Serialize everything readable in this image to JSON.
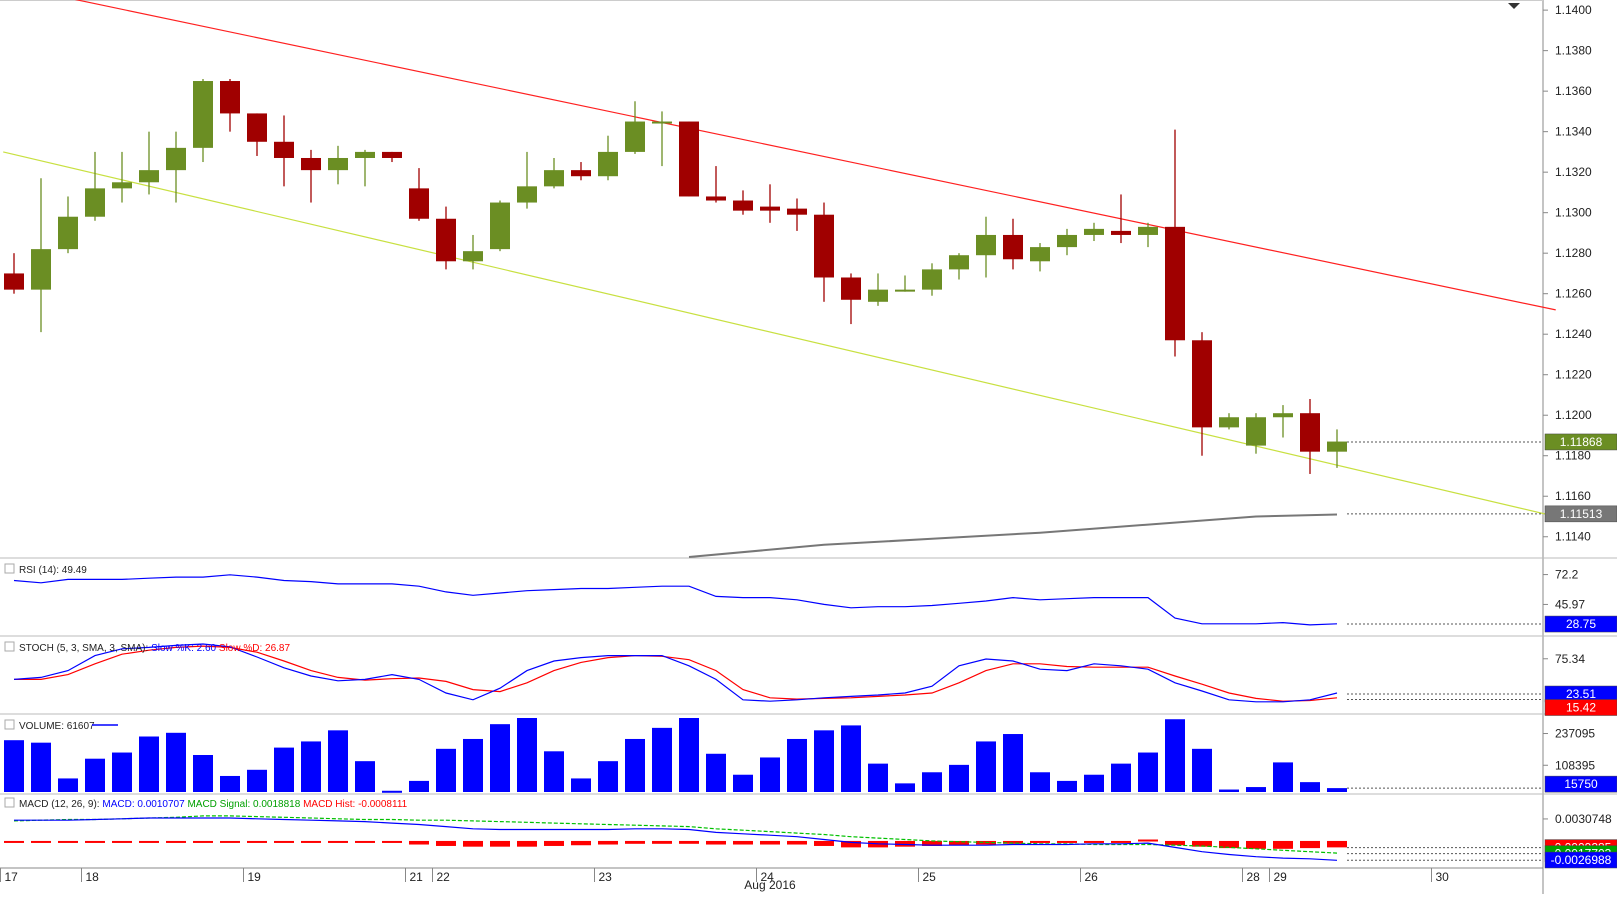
{
  "chart_data": {
    "type": "candlestick",
    "period_label": "Aug 2016",
    "price_axis": {
      "ylim": [
        1.113,
        1.1405
      ],
      "ticks": [
        "1.1400",
        "1.1380",
        "1.1360",
        "1.1340",
        "1.1320",
        "1.1300",
        "1.1280",
        "1.1260",
        "1.1240",
        "1.1220",
        "1.1200",
        "1.1180",
        "1.1160",
        "1.1140"
      ],
      "tick_values": [
        1.14,
        1.138,
        1.136,
        1.134,
        1.132,
        1.13,
        1.128,
        1.126,
        1.124,
        1.122,
        1.12,
        1.118,
        1.116,
        1.114
      ],
      "current_price_label": "1.11868",
      "current_price": 1.11868,
      "ma_label": "1.11513",
      "ma_value": 1.11513
    },
    "x_labels": [
      {
        "label": "17",
        "idx": -0.5
      },
      {
        "label": "18",
        "idx": 2.5
      },
      {
        "label": "19",
        "idx": 8.5
      },
      {
        "label": "21",
        "idx": 14.5
      },
      {
        "label": "22",
        "idx": 15.5
      },
      {
        "label": "23",
        "idx": 21.5
      },
      {
        "label": "24",
        "idx": 27.5
      },
      {
        "label": "25",
        "idx": 33.5
      },
      {
        "label": "26",
        "idx": 39.5
      },
      {
        "label": "28",
        "idx": 45.5
      },
      {
        "label": "29",
        "idx": 46.5
      },
      {
        "label": "30",
        "idx": 52.5
      }
    ],
    "candles": [
      {
        "o": 1.127,
        "h": 1.128,
        "l": 1.126,
        "c": 1.1262
      },
      {
        "o": 1.1262,
        "h": 1.1317,
        "l": 1.1241,
        "c": 1.1282
      },
      {
        "o": 1.1282,
        "h": 1.1308,
        "l": 1.128,
        "c": 1.1298
      },
      {
        "o": 1.1298,
        "h": 1.133,
        "l": 1.1296,
        "c": 1.1312
      },
      {
        "o": 1.1312,
        "h": 1.133,
        "l": 1.1305,
        "c": 1.1315
      },
      {
        "o": 1.1315,
        "h": 1.134,
        "l": 1.1309,
        "c": 1.1321
      },
      {
        "o": 1.1321,
        "h": 1.134,
        "l": 1.1305,
        "c": 1.1332
      },
      {
        "o": 1.1332,
        "h": 1.1366,
        "l": 1.1325,
        "c": 1.1365
      },
      {
        "o": 1.1365,
        "h": 1.1366,
        "l": 1.134,
        "c": 1.1349
      },
      {
        "o": 1.1349,
        "h": 1.1349,
        "l": 1.1328,
        "c": 1.1335
      },
      {
        "o": 1.1335,
        "h": 1.1348,
        "l": 1.1313,
        "c": 1.1327
      },
      {
        "o": 1.1327,
        "h": 1.1331,
        "l": 1.1305,
        "c": 1.1321
      },
      {
        "o": 1.1321,
        "h": 1.1333,
        "l": 1.1314,
        "c": 1.1327
      },
      {
        "o": 1.1327,
        "h": 1.1331,
        "l": 1.1313,
        "c": 1.133
      },
      {
        "o": 1.133,
        "h": 1.133,
        "l": 1.1325,
        "c": 1.1327
      },
      {
        "o": 1.1312,
        "h": 1.1322,
        "l": 1.1296,
        "c": 1.1297
      },
      {
        "o": 1.1297,
        "h": 1.1303,
        "l": 1.1272,
        "c": 1.1276
      },
      {
        "o": 1.1276,
        "h": 1.1289,
        "l": 1.1272,
        "c": 1.1281
      },
      {
        "o": 1.1282,
        "h": 1.1306,
        "l": 1.1281,
        "c": 1.1305
      },
      {
        "o": 1.1305,
        "h": 1.133,
        "l": 1.1302,
        "c": 1.1313
      },
      {
        "o": 1.1313,
        "h": 1.1327,
        "l": 1.1312,
        "c": 1.1321
      },
      {
        "o": 1.1321,
        "h": 1.1325,
        "l": 1.1316,
        "c": 1.1318
      },
      {
        "o": 1.1318,
        "h": 1.1338,
        "l": 1.1316,
        "c": 1.133
      },
      {
        "o": 1.133,
        "h": 1.1355,
        "l": 1.1329,
        "c": 1.1345
      },
      {
        "o": 1.1345,
        "h": 1.135,
        "l": 1.1323,
        "c": 1.1345
      },
      {
        "o": 1.1345,
        "h": 1.1345,
        "l": 1.1308,
        "c": 1.1308
      },
      {
        "o": 1.1308,
        "h": 1.1323,
        "l": 1.1305,
        "c": 1.1306
      },
      {
        "o": 1.1306,
        "h": 1.1311,
        "l": 1.1299,
        "c": 1.1301
      },
      {
        "o": 1.1303,
        "h": 1.1314,
        "l": 1.1295,
        "c": 1.1301
      },
      {
        "o": 1.1302,
        "h": 1.1307,
        "l": 1.1291,
        "c": 1.1299
      },
      {
        "o": 1.1299,
        "h": 1.1305,
        "l": 1.1256,
        "c": 1.1268
      },
      {
        "o": 1.1268,
        "h": 1.127,
        "l": 1.1245,
        "c": 1.1257
      },
      {
        "o": 1.1256,
        "h": 1.127,
        "l": 1.1254,
        "c": 1.1262
      },
      {
        "o": 1.1262,
        "h": 1.1269,
        "l": 1.1261,
        "c": 1.1262
      },
      {
        "o": 1.1262,
        "h": 1.1275,
        "l": 1.1259,
        "c": 1.1272
      },
      {
        "o": 1.1272,
        "h": 1.128,
        "l": 1.1267,
        "c": 1.1279
      },
      {
        "o": 1.1279,
        "h": 1.1298,
        "l": 1.1268,
        "c": 1.1289
      },
      {
        "o": 1.1289,
        "h": 1.1297,
        "l": 1.1272,
        "c": 1.1277
      },
      {
        "o": 1.1276,
        "h": 1.1285,
        "l": 1.1271,
        "c": 1.1283
      },
      {
        "o": 1.1283,
        "h": 1.1292,
        "l": 1.1279,
        "c": 1.1289
      },
      {
        "o": 1.1289,
        "h": 1.1295,
        "l": 1.1286,
        "c": 1.1292
      },
      {
        "o": 1.1291,
        "h": 1.1309,
        "l": 1.1285,
        "c": 1.1289
      },
      {
        "o": 1.1289,
        "h": 1.1295,
        "l": 1.1283,
        "c": 1.1293
      },
      {
        "o": 1.1293,
        "h": 1.1341,
        "l": 1.1229,
        "c": 1.1237
      },
      {
        "o": 1.1237,
        "h": 1.1241,
        "l": 1.118,
        "c": 1.1194
      },
      {
        "o": 1.1194,
        "h": 1.1201,
        "l": 1.1193,
        "c": 1.1199
      },
      {
        "o": 1.1185,
        "h": 1.1201,
        "l": 1.1181,
        "c": 1.1199
      },
      {
        "o": 1.1199,
        "h": 1.1205,
        "l": 1.1189,
        "c": 1.1201
      },
      {
        "o": 1.1201,
        "h": 1.1208,
        "l": 1.1171,
        "c": 1.1182
      },
      {
        "o": 1.1182,
        "h": 1.1193,
        "l": 1.1174,
        "c": 1.1187
      }
    ],
    "resistance_line": {
      "from": {
        "idx": 2,
        "price": 1.1406
      },
      "to": {
        "idx": 57.1,
        "price": 1.1252
      }
    },
    "support_line": {
      "from": {
        "idx": -0.4,
        "price": 1.133
      },
      "to": {
        "idx": 57.1,
        "price": 1.115
      }
    },
    "moving_average": [
      {
        "idx": 25,
        "v": 1.113
      },
      {
        "idx": 30,
        "v": 1.1136
      },
      {
        "idx": 34,
        "v": 1.1139
      },
      {
        "idx": 38,
        "v": 1.1142
      },
      {
        "idx": 42,
        "v": 1.1146
      },
      {
        "idx": 46,
        "v": 1.115
      },
      {
        "idx": 49,
        "v": 1.1151
      }
    ],
    "rsi": {
      "title": "RSI (14): 49.49",
      "ylim": [
        20,
        85
      ],
      "ticks": [
        "72.2",
        "45.97"
      ],
      "tick_values": [
        72.2,
        45.97
      ],
      "current_label": "28.75",
      "current": 28.75,
      "values": [
        67,
        65,
        68,
        68,
        68,
        69,
        70,
        70,
        72,
        70,
        67,
        66,
        64,
        64,
        64,
        62,
        57,
        54,
        56,
        58,
        59,
        60,
        60,
        61,
        62,
        62,
        53,
        52,
        52,
        50,
        46,
        43,
        44,
        44,
        45,
        47,
        49,
        52,
        50,
        51,
        52,
        52,
        52,
        34,
        29,
        29,
        29,
        30,
        28,
        29
      ]
    },
    "stoch": {
      "title": "STOCH (5, 3, SMA, 3, SMA):",
      "k_label": "Slow %K: 2.60",
      "d_label": "Slow %D: 26.87",
      "ylim": [
        0,
        100
      ],
      "ticks": [
        "75.34"
      ],
      "tick_values": [
        75.34
      ],
      "current_labels": [
        "23.51",
        "15.42"
      ],
      "current_values": [
        23.51,
        15.42
      ],
      "k_values": [
        45,
        48,
        58,
        80,
        90,
        92,
        95,
        97,
        93,
        78,
        62,
        50,
        43,
        45,
        52,
        45,
        25,
        15,
        32,
        58,
        72,
        77,
        80,
        80,
        80,
        65,
        45,
        15,
        13,
        15,
        18,
        20,
        22,
        25,
        35,
        65,
        75,
        72,
        60,
        58,
        68,
        65,
        60,
        40,
        28,
        15,
        12,
        12,
        15,
        25
      ],
      "d_values": [
        45,
        45,
        52,
        68,
        82,
        88,
        92,
        94,
        92,
        85,
        72,
        58,
        48,
        44,
        46,
        47,
        42,
        30,
        27,
        40,
        58,
        70,
        77,
        80,
        79,
        74,
        58,
        30,
        18,
        16,
        17,
        18,
        20,
        22,
        25,
        40,
        58,
        68,
        68,
        64,
        63,
        63,
        63,
        50,
        38,
        25,
        17,
        13,
        14,
        18
      ]
    },
    "volume": {
      "title": "VOLUME: 61607",
      "ylim": [
        0,
        300000
      ],
      "ticks": [
        "237095",
        "108395"
      ],
      "tick_values": [
        237095,
        108395
      ],
      "current_label": "15750",
      "current": 15750,
      "values": [
        210000,
        200000,
        55000,
        135000,
        160000,
        225000,
        240000,
        150000,
        65000,
        90000,
        180000,
        205000,
        250000,
        125000,
        5000,
        45000,
        175000,
        215000,
        275000,
        300000,
        165000,
        55000,
        125000,
        215000,
        260000,
        300000,
        155000,
        70000,
        140000,
        215000,
        250000,
        270000,
        115000,
        35000,
        80000,
        110000,
        205000,
        235000,
        80000,
        45000,
        70000,
        115000,
        160000,
        295000,
        175000,
        10000,
        20000,
        120000,
        40000,
        15750
      ]
    },
    "macd": {
      "title": "MACD (12, 26, 9):",
      "macd_label": "MACD: 0.0010707",
      "signal_label": "MACD Signal: 0.0018818",
      "hist_label": "MACD Hist: -0.0008111",
      "ylim": [
        -0.0035,
        0.006
      ],
      "ticks": [
        "0.0030748"
      ],
      "tick_values": [
        0.0030748
      ],
      "current_labels": [
        "-0.0009285",
        "-0.0017703",
        "-0.0026988"
      ],
      "current_values": [
        -0.0009285,
        -0.0017703,
        -0.0026988
      ],
      "macd_values": [
        0.0029,
        0.0029,
        0.0029,
        0.003,
        0.0031,
        0.0032,
        0.0032,
        0.0032,
        0.0032,
        0.0031,
        0.003,
        0.0029,
        0.0028,
        0.0027,
        0.0025,
        0.0023,
        0.002,
        0.0017,
        0.0016,
        0.0016,
        0.0016,
        0.0016,
        0.0016,
        0.0017,
        0.0017,
        0.0016,
        0.0012,
        0.001,
        0.0008,
        0.0006,
        0.0002,
        -0.0002,
        -0.0004,
        -0.0005,
        -0.0006,
        -0.0006,
        -0.0006,
        -0.0005,
        -0.0005,
        -0.0005,
        -0.0004,
        -0.0004,
        -0.0003,
        -0.0009,
        -0.0015,
        -0.0019,
        -0.0022,
        -0.0024,
        -0.0025,
        -0.0027
      ],
      "signal_values": [
        0.0028,
        0.0029,
        0.003,
        0.003,
        0.0031,
        0.0032,
        0.0033,
        0.0035,
        0.0035,
        0.0034,
        0.0033,
        0.0032,
        0.0031,
        0.003,
        0.003,
        0.0029,
        0.0029,
        0.0028,
        0.0027,
        0.0026,
        0.0025,
        0.0024,
        0.0023,
        0.0022,
        0.0021,
        0.002,
        0.0017,
        0.0015,
        0.0013,
        0.0011,
        0.0009,
        0.0006,
        0.0004,
        0.0002,
        0.0,
        -0.0001,
        -0.0002,
        -0.0003,
        -0.0004,
        -0.0004,
        -0.0005,
        -0.0005,
        -0.0005,
        -0.0006,
        -0.0007,
        -0.0009,
        -0.0011,
        -0.0013,
        -0.0015,
        -0.0017
      ],
      "hist_values": [
        -0.0001,
        -0.0001,
        -0.0001,
        -0.0001,
        -0.0001,
        -0.0001,
        -0.0001,
        -0.0002,
        -0.0001,
        -0.0001,
        -0.0001,
        -0.0001,
        -0.0001,
        -0.0001,
        -0.0001,
        -0.0005,
        -0.0007,
        -0.0008,
        -0.0008,
        -0.0008,
        -0.0007,
        -0.0006,
        -0.0005,
        -0.0004,
        -0.0004,
        -0.0004,
        -0.0005,
        -0.0005,
        -0.0005,
        -0.0005,
        -0.0007,
        -0.0009,
        -0.0009,
        -0.0008,
        -0.0007,
        -0.0006,
        -0.0005,
        -0.0004,
        -0.0002,
        -0.0002,
        -0.0001,
        -0.0001,
        0.0002,
        -0.0006,
        -0.0008,
        -0.001,
        -0.0011,
        -0.0011,
        -0.001,
        -0.0009
      ]
    },
    "colors": {
      "bull": "#6b8e23",
      "bear": "#a00000",
      "resistance": "#ff2020",
      "support": "#c8e040",
      "ma": "#777777",
      "rsi": "#0000ff",
      "stoch_k": "#0000ff",
      "stoch_d": "#ff0000",
      "volume": "#0000ff",
      "macd": "#0000ff",
      "signal": "#00c000",
      "hist": "#ff0000",
      "grid": "#cccccc",
      "axis": "#888888"
    }
  }
}
